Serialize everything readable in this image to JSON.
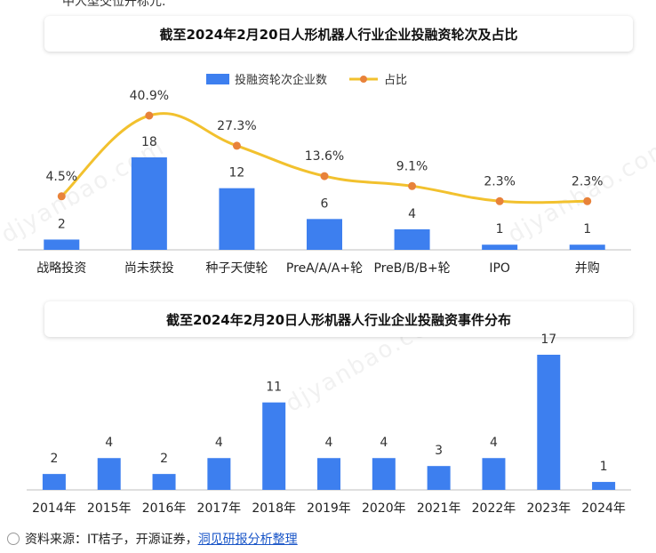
{
  "header_fragment": "中人型交位开标元.",
  "chart_data": [
    {
      "type": "bar+line",
      "title": "截至2024年2月20日人形机器人行业企业投融资轮次及占比",
      "categories": [
        "战略投资",
        "尚未获投",
        "种子天使轮",
        "PreA/A/A+轮",
        "PreB/B/B+轮",
        "IPO",
        "并购"
      ],
      "series": [
        {
          "name": "投融资轮次企业数",
          "type": "bar",
          "values": [
            2,
            18,
            12,
            6,
            4,
            1,
            1
          ],
          "labels": [
            "2",
            "18",
            "12",
            "6",
            "4",
            "1",
            "1"
          ]
        },
        {
          "name": "占比",
          "type": "line",
          "values": [
            4.5,
            40.9,
            27.3,
            13.6,
            9.1,
            2.3,
            2.3
          ],
          "labels": [
            "4.5%",
            "40.9%",
            "27.3%",
            "13.6%",
            "9.1%",
            "2.3%",
            "2.3%"
          ]
        }
      ],
      "bar_ylim": [
        0,
        24
      ],
      "line_ylim": [
        0,
        46
      ],
      "legend_position": "top-center"
    },
    {
      "type": "bar",
      "title": "截至2024年2月20日人形机器人行业企业投融资事件分布",
      "categories": [
        "2014年",
        "2015年",
        "2016年",
        "2017年",
        "2018年",
        "2019年",
        "2020年",
        "2021年",
        "2022年",
        "2023年",
        "2024年"
      ],
      "values": [
        2,
        4,
        2,
        4,
        11,
        4,
        4,
        3,
        4,
        17,
        1
      ],
      "labels": [
        "2",
        "4",
        "2",
        "4",
        "11",
        "4",
        "4",
        "3",
        "4",
        "17",
        "1"
      ],
      "ylim": [
        0,
        18
      ]
    }
  ],
  "colors": {
    "bar": "#3d7fef",
    "line": "#f2c12e",
    "marker": "#e8823a",
    "axis": "#bfbfbf"
  },
  "watermark_text": "djyanbao.com",
  "source": {
    "prefix": "资料来源：IT桔子，开源证券，",
    "link": "洞见研报分析整理"
  }
}
